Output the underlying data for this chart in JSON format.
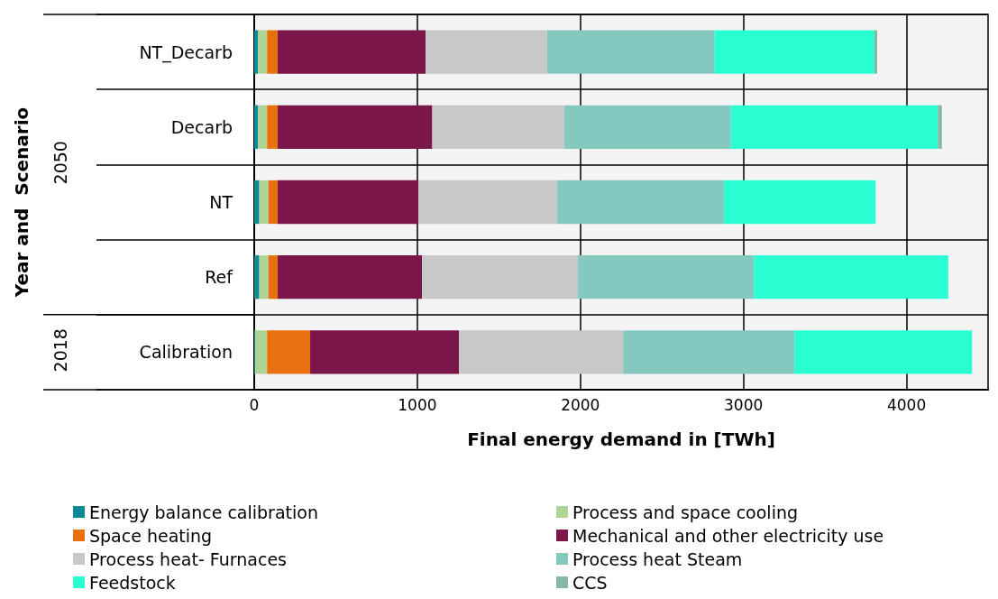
{
  "chart_data": {
    "type": "bar",
    "orientation": "horizontal",
    "stacked": true,
    "xlabel": "Final energy demand in [TWh]",
    "categories": [
      "NT_Decarb",
      "Decarb",
      "NT",
      "Ref",
      "Calibration"
    ],
    "annotations": [
      "Year and  Scenario",
      "2050",
      "2018"
    ],
    "series": [
      {
        "name": "Energy balance calibration",
        "color": "#0e8a96",
        "values": [
          24,
          24,
          31,
          31,
          7
        ]
      },
      {
        "name": "Process and space cooling",
        "color": "#b0d494",
        "values": [
          55,
          55,
          56,
          56,
          72
        ]
      },
      {
        "name": "Space heating",
        "color": "#e8700f",
        "values": [
          65,
          65,
          57,
          57,
          264
        ]
      },
      {
        "name": "Mechanical and other electricity use",
        "color": "#7b164a",
        "values": [
          907,
          948,
          863,
          885,
          913
        ]
      },
      {
        "name": "Process heat- Furnaces",
        "color": "#c8c8c8",
        "values": [
          745,
          809,
          851,
          956,
          1006
        ]
      },
      {
        "name": "Process heat Steam",
        "color": "#85c8bf",
        "values": [
          1027,
          1022,
          1022,
          1080,
          1050
        ]
      },
      {
        "name": "Feedstock",
        "color": "#2affd4",
        "values": [
          980,
          1269,
          930,
          1191,
          1090
        ]
      },
      {
        "name": "CCS",
        "color": "#86b8a4",
        "values": [
          17,
          25,
          0,
          0,
          0
        ]
      }
    ],
    "xlim": [
      0,
      4500
    ],
    "xticks": [
      0,
      1000,
      2000,
      3000,
      4000
    ],
    "grid": true,
    "legend": "bottom"
  }
}
